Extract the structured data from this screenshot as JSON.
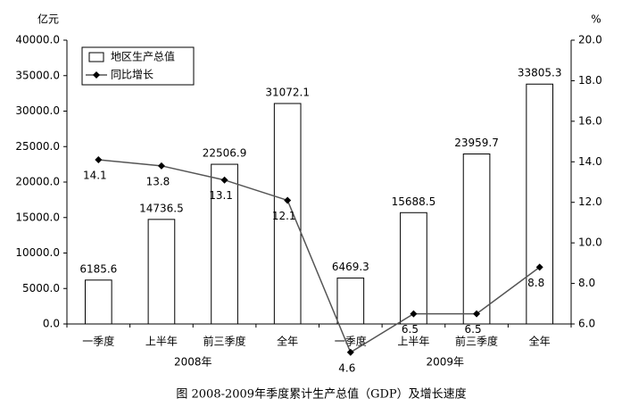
{
  "chart_data": {
    "type": "bar_line",
    "y_label": "亿元",
    "y2_label": "%",
    "caption": "图  2008-2009年季度累计生产总值（GDP）及增长速度",
    "categories": [
      "一季度",
      "上半年",
      "前三季度",
      "全年",
      "一季度",
      "上半年",
      "前三季度",
      "全年"
    ],
    "group_labels": [
      "2008年",
      "2009年"
    ],
    "series": [
      {
        "name": "地区生产总值",
        "type": "bar",
        "color": "#ffffff",
        "values": [
          6185.6,
          14736.5,
          22506.9,
          31072.1,
          6469.3,
          15688.5,
          23959.7,
          33805.3
        ]
      },
      {
        "name": "同比增长",
        "type": "line",
        "axis": "y2",
        "color": "#000000",
        "values": [
          14.1,
          13.8,
          13.1,
          12.1,
          4.6,
          6.5,
          6.5,
          8.8
        ]
      }
    ],
    "ylim": [
      0,
      40000
    ],
    "yticks": [
      {
        "value": 0,
        "label": "0.0"
      },
      {
        "value": 5000,
        "label": "5000.0"
      },
      {
        "value": 10000,
        "label": "10000.0"
      },
      {
        "value": 15000,
        "label": "15000.0"
      },
      {
        "value": 20000,
        "label": "20000.0"
      },
      {
        "value": 25000,
        "label": "25000.0"
      },
      {
        "value": 30000,
        "label": "30000.0"
      },
      {
        "value": 35000,
        "label": "35000.0"
      },
      {
        "value": 40000,
        "label": "40000.0"
      }
    ],
    "y2lim": [
      6,
      20
    ],
    "y2ticks": [
      {
        "value": 6,
        "label": "6.0"
      },
      {
        "value": 8,
        "label": "8.0"
      },
      {
        "value": 10,
        "label": "10.0"
      },
      {
        "value": 12,
        "label": "12.0"
      },
      {
        "value": 14,
        "label": "14.0"
      },
      {
        "value": 16,
        "label": "16.0"
      },
      {
        "value": 18,
        "label": "18.0"
      },
      {
        "value": 20,
        "label": "20.0"
      }
    ],
    "legend": "top-left"
  }
}
